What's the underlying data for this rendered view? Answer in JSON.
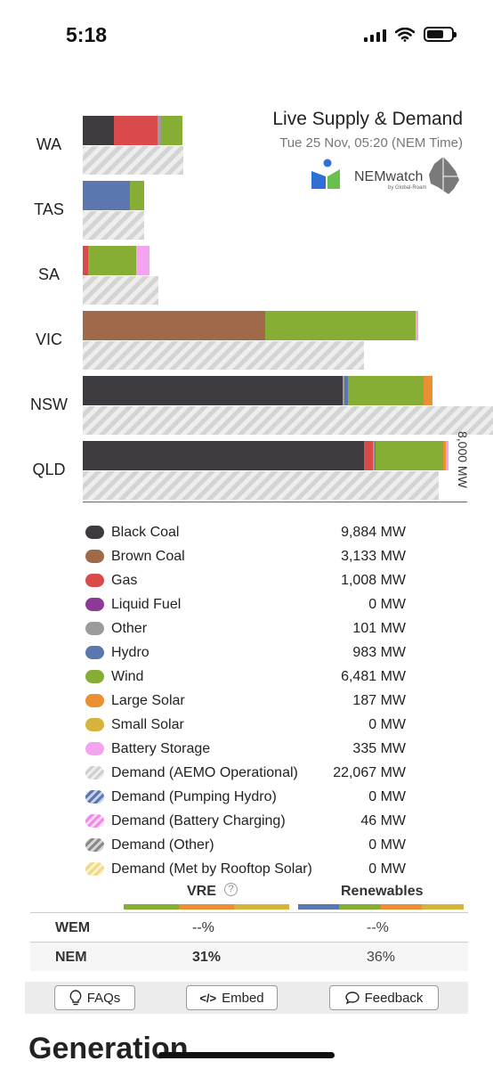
{
  "status_bar": {
    "time": "5:18"
  },
  "header": {
    "title": "Live Supply & Demand",
    "timestamp": "Tue 25 Nov, 05:20 (NEM Time)",
    "logo_text": "NEMwatch",
    "logo_sub": "by Global-Roam"
  },
  "colors": {
    "black_coal": "#3d3a40",
    "brown_coal": "#a0694a",
    "gas": "#d94b4b",
    "liquid_fuel": "#8b3a96",
    "other": "#9b9b9b",
    "hydro": "#5b77b0",
    "wind": "#86ae34",
    "large_solar": "#ec8e32",
    "small_solar": "#d6b33a",
    "battery": "#f4a3f0"
  },
  "chart_data": {
    "type": "bar",
    "orientation": "horizontal",
    "axis_max_label": "8,000 MW",
    "xlim": [
      0,
      8000
    ],
    "regions": [
      {
        "name": "WA",
        "supply": [
          [
            "black_coal",
            650
          ],
          [
            "gas",
            900
          ],
          [
            "other",
            80
          ],
          [
            "wind",
            450
          ]
        ],
        "demand": 2100
      },
      {
        "name": "TAS",
        "supply": [
          [
            "hydro",
            983
          ],
          [
            "wind",
            290
          ]
        ],
        "demand": 1280
      },
      {
        "name": "SA",
        "supply": [
          [
            "gas",
            110
          ],
          [
            "wind",
            1010
          ],
          [
            "battery",
            260
          ]
        ],
        "demand": 1580
      },
      {
        "name": "VIC",
        "supply": [
          [
            "brown_coal",
            3800
          ],
          [
            "wind",
            3130
          ],
          [
            "battery",
            50
          ]
        ],
        "demand": 5850
      },
      {
        "name": "NSW",
        "supply": [
          [
            "black_coal",
            5400
          ],
          [
            "other",
            40
          ],
          [
            "hydro",
            80
          ],
          [
            "wind",
            1580
          ],
          [
            "large_solar",
            170
          ]
        ],
        "demand": 8580
      },
      {
        "name": "QLD",
        "supply": [
          [
            "black_coal",
            5850
          ],
          [
            "gas",
            180
          ],
          [
            "other",
            40
          ],
          [
            "hydro",
            30
          ],
          [
            "wind",
            1400
          ],
          [
            "large_solar",
            60
          ],
          [
            "battery",
            60
          ]
        ],
        "demand": 7400
      }
    ]
  },
  "legend": [
    {
      "key": "black_coal",
      "label": "Black Coal",
      "value": "9,884 MW"
    },
    {
      "key": "brown_coal",
      "label": "Brown Coal",
      "value": "3,133 MW"
    },
    {
      "key": "gas",
      "label": "Gas",
      "value": "1,008 MW"
    },
    {
      "key": "liquid_fuel",
      "label": "Liquid Fuel",
      "value": "0 MW"
    },
    {
      "key": "other",
      "label": "Other",
      "value": "101 MW"
    },
    {
      "key": "hydro",
      "label": "Hydro",
      "value": "983 MW"
    },
    {
      "key": "wind",
      "label": "Wind",
      "value": "6,481 MW"
    },
    {
      "key": "large_solar",
      "label": "Large Solar",
      "value": "187 MW"
    },
    {
      "key": "small_solar",
      "label": "Small Solar",
      "value": "0 MW"
    },
    {
      "key": "battery",
      "label": "Battery Storage",
      "value": "335 MW"
    },
    {
      "key": "demand_op",
      "label": "Demand (AEMO Operational)",
      "value": "22,067 MW"
    },
    {
      "key": "demand_hydro",
      "label": "Demand (Pumping Hydro)",
      "value": "0 MW"
    },
    {
      "key": "demand_batt",
      "label": "Demand (Battery Charging)",
      "value": "46 MW"
    },
    {
      "key": "demand_other",
      "label": "Demand (Other)",
      "value": "0 MW"
    },
    {
      "key": "demand_rooftop",
      "label": "Demand (Met by Rooftop Solar)",
      "value": "0 MW"
    }
  ],
  "summary": {
    "vre_title": "VRE",
    "renewables_title": "Renewables",
    "rows": [
      {
        "name": "WEM",
        "vre": "--%",
        "renewables": "--%"
      },
      {
        "name": "NEM",
        "vre": "31%",
        "renewables": "36%"
      }
    ]
  },
  "footer": {
    "faqs": "FAQs",
    "embed": "Embed",
    "feedback": "Feedback"
  },
  "section_title": "Generation"
}
